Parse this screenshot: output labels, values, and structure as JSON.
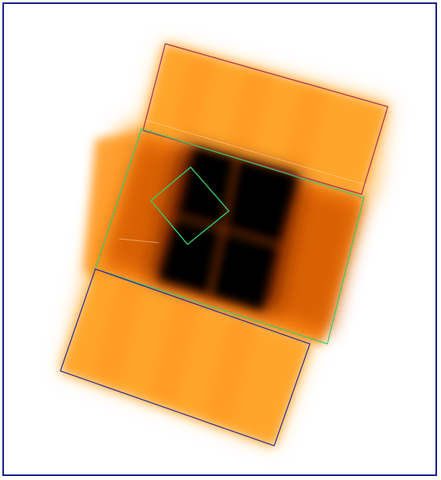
{
  "image": {
    "kind": "false-color exposure map with footprint outlines",
    "frame_color": "#1a1f8c",
    "colors": {
      "background": "#ffffff",
      "light_orange": "#ffa52a",
      "orange": "#ff8a14",
      "dark_orange": "#d25a00",
      "dark_brown": "#6a1e00",
      "black": "#000000",
      "outline_top": "#b1284d",
      "outline_middle": "#33cc66",
      "outline_bottom": "#2a2a9a",
      "outline_small": "#33cc66"
    },
    "regions": [
      "top-strip",
      "middle-strip",
      "bottom-strip",
      "center-core",
      "small-diamond"
    ]
  }
}
